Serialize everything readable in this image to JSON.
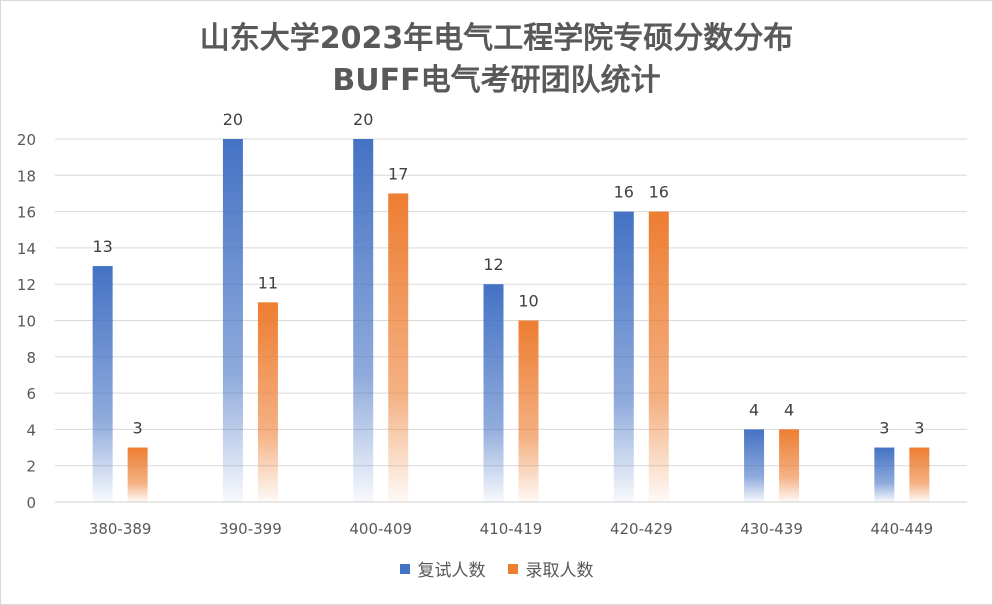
{
  "chart_data": {
    "type": "bar",
    "title": "山东大学2023年电气工程学院专硕分数分布",
    "subtitle": "BUFF电气考研团队统计",
    "categories": [
      "380-389",
      "390-399",
      "400-409",
      "410-419",
      "420-429",
      "430-439",
      "440-449"
    ],
    "series": [
      {
        "name": "复试人数",
        "values": [
          13,
          20,
          20,
          12,
          16,
          4,
          3
        ],
        "color": "#4472C4"
      },
      {
        "name": "录取人数",
        "values": [
          3,
          11,
          17,
          10,
          16,
          4,
          3
        ],
        "color": "#ED7D31"
      }
    ],
    "ylim": [
      0,
      20
    ],
    "yticks": [
      0,
      2,
      4,
      6,
      8,
      10,
      12,
      14,
      16,
      18,
      20
    ],
    "grid": true,
    "legend_position": "bottom",
    "xlabel": "",
    "ylabel": ""
  }
}
